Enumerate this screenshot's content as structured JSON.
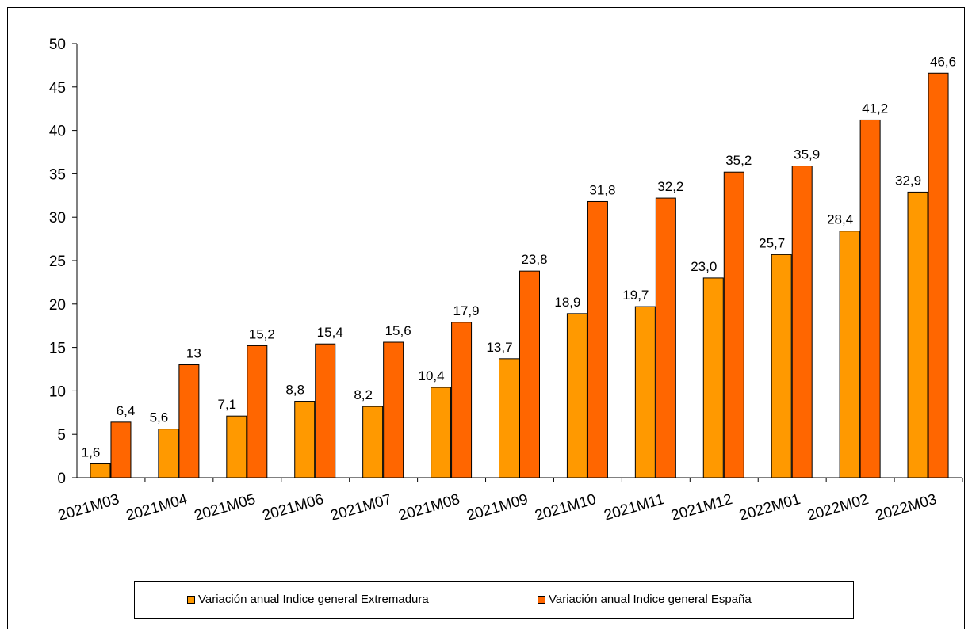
{
  "colors": {
    "extremadura": "#FF9900",
    "espana": "#FF6600",
    "stroke": "#000000"
  },
  "chart_data": {
    "type": "bar",
    "title": "",
    "xlabel": "",
    "ylabel": "",
    "ylim": [
      0,
      50
    ],
    "yticks": [
      0,
      5,
      10,
      15,
      20,
      25,
      30,
      35,
      40,
      45,
      50
    ],
    "grid": false,
    "legend_position": "bottom",
    "categories": [
      "2021M03",
      "2021M04",
      "2021M05",
      "2021M06",
      "2021M07",
      "2021M08",
      "2021M09",
      "2021M10",
      "2021M11",
      "2021M12",
      "2022M01",
      "2022M02",
      "2022M03"
    ],
    "series": [
      {
        "name": "Variación anual Indice general Extremadura",
        "values": [
          1.6,
          5.6,
          7.1,
          8.8,
          8.2,
          10.4,
          13.7,
          18.9,
          19.7,
          23.0,
          25.7,
          28.4,
          32.9
        ],
        "labels": [
          "1,6",
          "5,6",
          "7,1",
          "8,8",
          "8,2",
          "10,4",
          "13,7",
          "18,9",
          "19,7",
          "23,0",
          "25,7",
          "28,4",
          "32,9"
        ]
      },
      {
        "name": "Variación anual Indice general España",
        "values": [
          6.4,
          13,
          15.2,
          15.4,
          15.6,
          17.9,
          23.8,
          31.8,
          32.2,
          35.2,
          35.9,
          41.2,
          46.6
        ],
        "labels": [
          "6,4",
          "13",
          "15,2",
          "15,4",
          "15,6",
          "17,9",
          "23,8",
          "31,8",
          "32,2",
          "35,2",
          "35,9",
          "41,2",
          "46,6"
        ]
      }
    ]
  }
}
